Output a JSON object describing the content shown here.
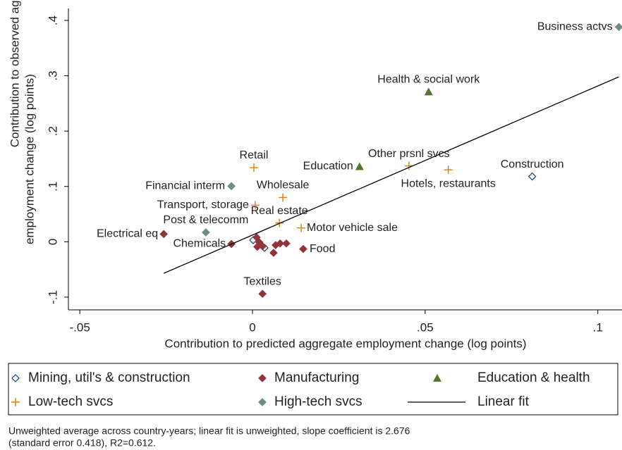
{
  "chart_data": {
    "type": "scatter",
    "y_label": [
      "Contribution to observed aggregate",
      "employment change (log points)"
    ],
    "x_label": "Contribution to predicted aggregate employment change (log points)",
    "note": [
      "Unweighted average across country-years; linear fit is unweighted, slope coefficient is 2.676",
      "(standard error 0.418), R2=0.612."
    ],
    "xlim": [
      -0.0533,
      0.107
    ],
    "ylim": [
      -0.123,
      0.4216
    ],
    "xticks": [
      {
        "value": -0.05,
        "label": "-.05"
      },
      0,
      {
        "value": 0.05,
        "label": ".05"
      },
      {
        "value": 0.1,
        "label": ".1"
      }
    ],
    "yticks": [
      {
        "value": -0.1,
        "label": "-.1"
      },
      0,
      {
        "value": 0.1,
        "label": ".1"
      },
      {
        "value": 0.2,
        "label": ".2"
      },
      {
        "value": 0.3,
        "label": ".3"
      },
      {
        "value": 0.4,
        "label": ".4"
      }
    ],
    "grid": false,
    "series": [
      {
        "name": "Mining, util's & construction",
        "color": "#1a476f",
        "marker": "diamond-hollow",
        "x": [
          0.081,
          0.0002,
          0.0035
        ],
        "values": [
          0.118,
          0.003,
          -0.011
        ],
        "labels": [
          "Construction",
          null,
          null
        ]
      },
      {
        "name": "Manufacturing",
        "color": "#90353b",
        "marker": "diamond",
        "x": [
          -0.0257,
          -0.0061,
          0.0147,
          0.0029,
          0.0012,
          0.002,
          0.0029,
          0.0014,
          0.0061,
          0.0067,
          0.008,
          0.0098
        ],
        "values": [
          0.014,
          -0.004,
          -0.013,
          -0.094,
          0.008,
          -0.001,
          -0.008,
          -0.009,
          -0.02,
          -0.006,
          -0.003,
          -0.003
        ],
        "labels": [
          "Electrical eq",
          "Chemicals",
          "Food",
          "Textiles",
          null,
          null,
          null,
          null,
          null,
          null,
          null,
          null
        ]
      },
      {
        "name": "Education & health",
        "color": "#55752f",
        "marker": "triangle",
        "x": [
          0.051,
          0.031
        ],
        "values": [
          0.271,
          0.136
        ],
        "labels": [
          "Health & social work",
          "Education"
        ]
      },
      {
        "name": "Low-tech svcs",
        "color": "#e37e00",
        "marker": "plus",
        "x": [
          0.0004,
          0.0088,
          0.0008,
          0.0078,
          0.0141,
          0.0453,
          0.0567
        ],
        "values": [
          0.134,
          0.08,
          0.066,
          0.034,
          0.025,
          0.137,
          0.13
        ],
        "labels": [
          "Retail",
          "Wholesale",
          "Transport, storage",
          "Real estate",
          "Motor vehicle sale",
          "Other prsnl svcs",
          "Hotels, restaurants"
        ]
      },
      {
        "name": "High-tech svcs",
        "color": "#6e8e84",
        "marker": "diamond",
        "x": [
          0.1061,
          -0.0061,
          -0.0135
        ],
        "values": [
          0.388,
          0.1005,
          0.017
        ],
        "labels": [
          "Business actvs",
          "Financial interm",
          "Post & telecomm"
        ]
      },
      {
        "name": "Linear fit",
        "color": "#000000",
        "marker": "line",
        "x": [
          -0.0257,
          0.1061
        ],
        "values": [
          -0.057,
          0.298
        ]
      }
    ]
  }
}
